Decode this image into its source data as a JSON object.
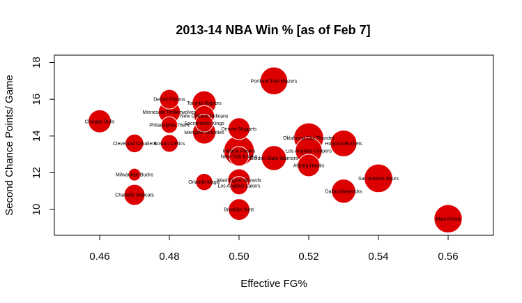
{
  "chart_data": {
    "type": "scatter",
    "title": "2013-14 NBA Win % [as of Feb 7]",
    "xlabel": "Effective FG%",
    "ylabel": "Second Chance Points/ Game",
    "xlim": [
      0.447,
      0.573
    ],
    "ylim": [
      8.6,
      18.4
    ],
    "x_ticks": [
      0.46,
      0.48,
      0.5,
      0.52,
      0.54,
      0.56
    ],
    "x_tick_labels": [
      "0.46",
      "0.48",
      "0.50",
      "0.52",
      "0.54",
      "0.56"
    ],
    "y_ticks": [
      10,
      12,
      14,
      16,
      18
    ],
    "y_tick_labels": [
      "10",
      "12",
      "14",
      "16",
      "18"
    ],
    "grid": false,
    "legend": "none",
    "marker_color": "#dd0000",
    "marker_edge": "#ffffff",
    "size_encodes": "win_pct",
    "points": [
      {
        "team": "Chicago Bulls",
        "x": 0.46,
        "y": 14.8,
        "win_pct": 0.52
      },
      {
        "team": "Cleveland Cavaliers",
        "x": 0.47,
        "y": 13.6,
        "win_pct": 0.36
      },
      {
        "team": "Milwaukee Bucks",
        "x": 0.47,
        "y": 11.9,
        "win_pct": 0.15
      },
      {
        "team": "Charlotte Bobcats",
        "x": 0.47,
        "y": 10.8,
        "win_pct": 0.45
      },
      {
        "team": "Detroit Pistons",
        "x": 0.48,
        "y": 16.0,
        "win_pct": 0.4
      },
      {
        "team": "Minnesota Timberwolves",
        "x": 0.48,
        "y": 15.3,
        "win_pct": 0.49
      },
      {
        "team": "Philadelphia 76ers",
        "x": 0.48,
        "y": 14.6,
        "win_pct": 0.29
      },
      {
        "team": "Boston Celtics",
        "x": 0.48,
        "y": 13.6,
        "win_pct": 0.33
      },
      {
        "team": "Toronto Raptors",
        "x": 0.49,
        "y": 15.8,
        "win_pct": 0.56
      },
      {
        "team": "New Orleans Pelicans",
        "x": 0.49,
        "y": 15.1,
        "win_pct": 0.43
      },
      {
        "team": "Sacramento Kings",
        "x": 0.49,
        "y": 14.7,
        "win_pct": 0.33
      },
      {
        "team": "Memphis Grizzlies",
        "x": 0.49,
        "y": 14.2,
        "win_pct": 0.53
      },
      {
        "team": "Orlando Magic",
        "x": 0.49,
        "y": 11.5,
        "win_pct": 0.31
      },
      {
        "team": "Denver Nuggets",
        "x": 0.5,
        "y": 14.4,
        "win_pct": 0.48
      },
      {
        "team": "Indiana Pacers",
        "x": 0.5,
        "y": 13.2,
        "win_pct": 0.79
      },
      {
        "team": "New York Knicks",
        "x": 0.5,
        "y": 12.9,
        "win_pct": 0.4
      },
      {
        "team": "Washington Wizards",
        "x": 0.5,
        "y": 11.6,
        "win_pct": 0.5
      },
      {
        "team": "Los Angeles Lakers",
        "x": 0.5,
        "y": 11.3,
        "win_pct": 0.35
      },
      {
        "team": "Brooklyn Nets",
        "x": 0.5,
        "y": 10.0,
        "win_pct": 0.47
      },
      {
        "team": "Portland Trail Blazers",
        "x": 0.51,
        "y": 17.0,
        "win_pct": 0.69
      },
      {
        "team": "Golden State Warriors",
        "x": 0.51,
        "y": 12.8,
        "win_pct": 0.59
      },
      {
        "team": "Oklahoma City Thunder",
        "x": 0.52,
        "y": 13.9,
        "win_pct": 0.77
      },
      {
        "team": "Los Angeles Clippers",
        "x": 0.52,
        "y": 13.2,
        "win_pct": 0.66
      },
      {
        "team": "Atlanta Hawks",
        "x": 0.52,
        "y": 12.4,
        "win_pct": 0.5
      },
      {
        "team": "Houston Rockets",
        "x": 0.53,
        "y": 13.6,
        "win_pct": 0.65
      },
      {
        "team": "Dallas Mavericks",
        "x": 0.53,
        "y": 11.0,
        "win_pct": 0.56
      },
      {
        "team": "San Antonio Spurs",
        "x": 0.54,
        "y": 11.7,
        "win_pct": 0.72
      },
      {
        "team": "Miami Heat",
        "x": 0.56,
        "y": 9.5,
        "win_pct": 0.71
      }
    ]
  }
}
